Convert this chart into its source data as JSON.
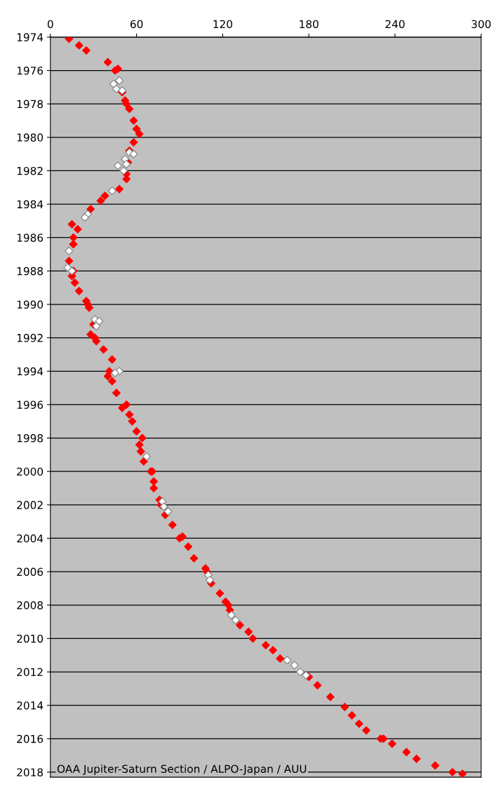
{
  "chart_data": {
    "type": "scatter",
    "xlim": [
      0,
      300
    ],
    "xticks": [
      0,
      60,
      120,
      180,
      240,
      300
    ],
    "ylim": [
      2018.3,
      1974
    ],
    "yticks": [
      1974,
      1976,
      1978,
      1980,
      1982,
      1984,
      1986,
      1988,
      1990,
      1992,
      1994,
      1996,
      1998,
      2000,
      2002,
      2004,
      2006,
      2008,
      2010,
      2012,
      2014,
      2016,
      2018
    ],
    "grid": "y",
    "legend": false,
    "annotations": [
      "OAA Jupiter-Saturn Section / ALPO-Japan / AUU"
    ],
    "series": [
      {
        "color": "#ff0000",
        "marker": "diamond",
        "x": [
          13,
          20,
          25,
          40,
          45,
          47,
          50,
          52,
          53,
          55,
          58,
          60,
          62,
          58,
          55,
          54,
          53,
          53,
          48,
          38,
          35,
          28,
          15,
          19,
          16,
          16,
          13,
          15,
          16,
          17,
          20,
          25,
          26,
          27,
          30,
          28,
          31,
          32,
          37,
          43,
          40,
          41,
          43,
          46,
          50,
          53,
          55,
          57,
          60,
          64,
          62,
          63,
          65,
          70,
          71,
          72,
          72,
          76,
          77,
          80,
          85,
          90,
          92,
          96,
          100,
          108,
          109,
          112,
          118,
          122,
          124,
          125,
          132,
          138,
          141,
          150,
          155,
          160,
          180,
          186,
          195,
          205,
          210,
          215,
          220,
          230,
          232,
          238,
          248,
          255,
          268,
          280,
          287
        ],
        "values": [
          1974.1,
          1974.5,
          1974.8,
          1975.5,
          1976,
          1975.9,
          1977.3,
          1977.8,
          1978,
          1978.3,
          1979,
          1979.5,
          1979.8,
          1980.3,
          1980.8,
          1981.5,
          1982.2,
          1982.5,
          1983.1,
          1983.5,
          1983.8,
          1984.3,
          1985.2,
          1985.5,
          1986,
          1986.4,
          1987.4,
          1988.3,
          1988,
          1988.7,
          1989.2,
          1989.8,
          1990,
          1990.2,
          1991.2,
          1991.8,
          1992,
          1992.2,
          1992.7,
          1993.3,
          1994.3,
          1994,
          1994.6,
          1995.3,
          1996.2,
          1996,
          1996.6,
          1997,
          1997.6,
          1998,
          1998.4,
          1998.8,
          1999.4,
          2000,
          2000,
          2000.6,
          2001,
          2001.7,
          2002,
          2002.6,
          2003.2,
          2004,
          2003.9,
          2004.5,
          2005.2,
          2005.8,
          2006,
          2006.7,
          2007.3,
          2007.8,
          2008,
          2008.3,
          2009.2,
          2009.6,
          2010,
          2010.4,
          2010.7,
          2011.2,
          2012.3,
          2012.8,
          2013.5,
          2014.1,
          2014.6,
          2015.1,
          2015.5,
          2016,
          2016,
          2016.3,
          2016.8,
          2017.2,
          2017.6,
          2018,
          2018.1
        ]
      },
      {
        "color": "#ffffff",
        "marker": "diamond",
        "x": [
          44,
          48,
          46,
          50,
          55,
          58,
          52,
          53,
          47,
          51,
          43,
          26,
          24,
          13,
          12,
          15,
          31,
          34,
          32,
          48,
          45,
          67,
          78,
          79,
          82,
          110,
          111,
          126,
          129,
          165,
          170,
          174,
          178
        ],
        "values": [
          1976.8,
          1976.6,
          1977.1,
          1977.2,
          1980.9,
          1981,
          1981.3,
          1981.6,
          1981.7,
          1982,
          1983.2,
          1984.6,
          1984.8,
          1986.8,
          1987.8,
          1988,
          1990.9,
          1991,
          1991.3,
          1994,
          1994.1,
          1999.1,
          2001.8,
          2002.1,
          2002.4,
          2006.2,
          2006.5,
          2008.6,
          2008.9,
          2011.3,
          2011.6,
          2012,
          2012.2
        ]
      }
    ]
  }
}
